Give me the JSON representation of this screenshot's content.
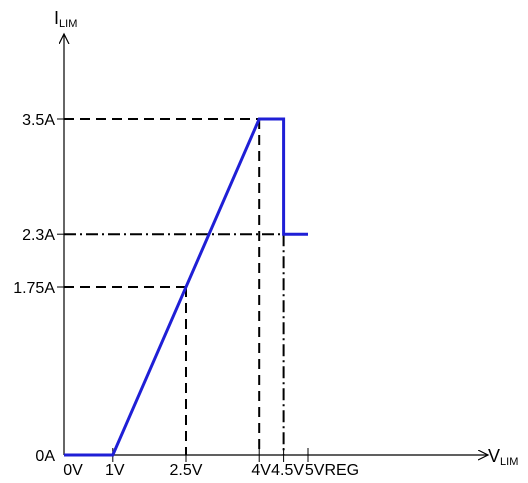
{
  "chart_data": {
    "type": "line",
    "title": "",
    "ylabel": {
      "main": "I",
      "sub": "LIM"
    },
    "xlabel": {
      "main": "V",
      "sub": "LIM"
    },
    "xlim": [
      0,
      5.8
    ],
    "ylim": [
      0,
      4.3
    ],
    "x_ticks": [
      {
        "value": 0,
        "label": "0V"
      },
      {
        "value": 1,
        "label": "1V"
      },
      {
        "value": 2.5,
        "label": "2.5V"
      },
      {
        "value": 4,
        "label": "4V"
      },
      {
        "value": 4.5,
        "label": "4.5V"
      },
      {
        "value": 5,
        "label": "5VREG"
      }
    ],
    "y_ticks": [
      {
        "value": 0,
        "label": "0A"
      },
      {
        "value": 1.75,
        "label": "1.75A"
      },
      {
        "value": 2.3,
        "label": "2.3A"
      },
      {
        "value": 3.5,
        "label": "3.5A"
      }
    ],
    "series": [
      {
        "color": "#1f1fd6",
        "x": [
          0,
          1,
          4,
          4.5,
          4.5,
          5
        ],
        "y": [
          0,
          0,
          3.5,
          3.5,
          2.3,
          2.3
        ]
      }
    ],
    "guides": [
      {
        "style": "dashed",
        "from": [
          0,
          3.5
        ],
        "to": [
          4,
          3.5
        ]
      },
      {
        "style": "dashed",
        "from": [
          4,
          3.5
        ],
        "to": [
          4,
          0
        ]
      },
      {
        "style": "dashed",
        "from": [
          0,
          1.75
        ],
        "to": [
          2.5,
          1.75
        ]
      },
      {
        "style": "dashed",
        "from": [
          2.5,
          1.75
        ],
        "to": [
          2.5,
          0
        ]
      },
      {
        "style": "dash-dot",
        "from": [
          0,
          2.3
        ],
        "to": [
          4.5,
          2.3
        ]
      },
      {
        "style": "dash-dot",
        "from": [
          4.5,
          2.3
        ],
        "to": [
          4.5,
          0
        ]
      }
    ]
  }
}
